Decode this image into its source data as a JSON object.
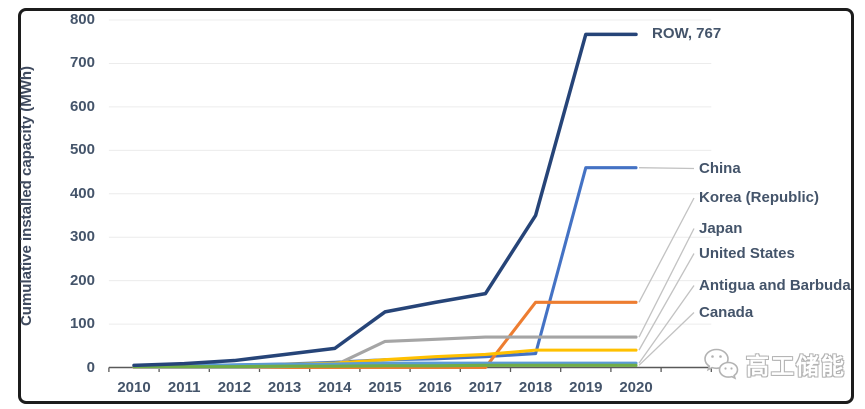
{
  "watermark": {
    "icon": "wechat-icon",
    "text": "高工储能"
  },
  "chart_data": {
    "type": "line",
    "title": "",
    "xlabel": "",
    "ylabel": "Cumulative installed capacity (MWh)",
    "ylim": [
      0,
      800
    ],
    "y_ticks": [
      0,
      100,
      200,
      300,
      400,
      500,
      600,
      700,
      800
    ],
    "grid": "horizontal",
    "legend_position": "right-annotations",
    "categories": [
      "2010",
      "2011",
      "2012",
      "2013",
      "2014",
      "2015",
      "2016",
      "2017",
      "2018",
      "2019",
      "2020"
    ],
    "series": [
      {
        "name": "China",
        "label": "China",
        "color": "#4472C4",
        "values": [
          2,
          4,
          6,
          8,
          12,
          18,
          20,
          25,
          32,
          460,
          460
        ]
      },
      {
        "name": "Korea (Republic)",
        "label": "Korea (Republic)",
        "color": "#ED7D31",
        "values": [
          0,
          0,
          0,
          0,
          0,
          0,
          0,
          0,
          150,
          150,
          150
        ]
      },
      {
        "name": "Japan",
        "label": "Japan",
        "color": "#A5A5A5",
        "values": [
          0,
          0,
          0,
          2,
          5,
          60,
          65,
          70,
          70,
          70,
          70
        ]
      },
      {
        "name": "United States",
        "label": "United States",
        "color": "#FFC000",
        "values": [
          2,
          3,
          5,
          7,
          10,
          18,
          25,
          30,
          40,
          40,
          40
        ]
      },
      {
        "name": "Antigua and Barbuda",
        "label": "Antigua and Barbuda",
        "color": "#5B9BD5",
        "values": [
          4,
          5,
          6,
          7,
          8,
          10,
          10,
          10,
          10,
          10,
          10
        ]
      },
      {
        "name": "Canada",
        "label": "Canada",
        "color": "#70AD47",
        "values": [
          2,
          2,
          2,
          3,
          3,
          4,
          4,
          5,
          5,
          5,
          5
        ]
      },
      {
        "name": "ROW",
        "label": "ROW, 767",
        "inline_label": true,
        "color": "#264478",
        "values": [
          5,
          9,
          16,
          30,
          44,
          128,
          150,
          170,
          350,
          767,
          767
        ]
      }
    ]
  }
}
